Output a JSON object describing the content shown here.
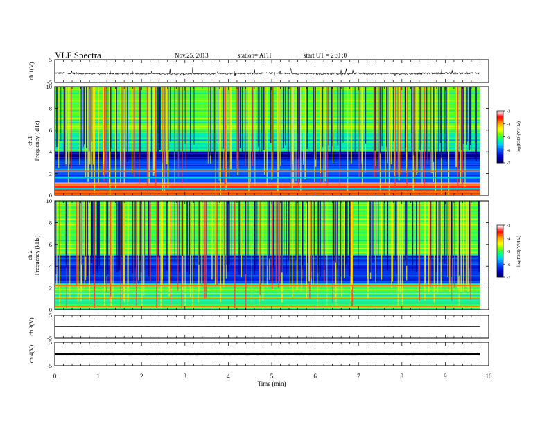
{
  "header": {
    "title": "VLF  Spectra",
    "date": "Nov.25, 2013",
    "station": "station= ATH",
    "start": "start  UT  =   2  :0  :0"
  },
  "colors": {
    "scale": [
      "#000066",
      "#0000ff",
      "#00c8ff",
      "#00ff80",
      "#ffff00",
      "#ff0000",
      "#ffffff"
    ]
  },
  "chart_data": [
    {
      "type": "line",
      "panel": "ch1-waveform",
      "ylabel": "ch.1(V)",
      "ylim": [
        -5,
        5
      ],
      "yticks": [
        "5",
        "-5"
      ],
      "x": [
        0,
        1,
        2,
        3,
        4,
        5,
        6,
        7,
        8,
        9,
        9.8
      ],
      "y": [
        -0.9,
        -1.2,
        -1.1,
        -1.3,
        -1.1,
        -1.0,
        -1.2,
        -1.1,
        -1.2,
        -1.0,
        -1.0
      ]
    },
    {
      "type": "heatmap",
      "panel": "ch1-spectrogram",
      "ylabel": "ch.1\nFrequency  (kHz)",
      "ylim": [
        0,
        10
      ],
      "yticks": [
        "0",
        "2",
        "4",
        "6",
        "8",
        "10"
      ],
      "colorbar": {
        "label": "log(PSD)(V²/Hz)",
        "range": [
          -7,
          -3
        ],
        "ticks": [
          "-7",
          "-6",
          "-5",
          "-4",
          "-3"
        ]
      },
      "bands_kHz": [
        {
          "from": 0,
          "to": 1.2,
          "level": -3.6
        },
        {
          "from": 1.2,
          "to": 3.2,
          "level": -6.0
        },
        {
          "from": 3.2,
          "to": 4.0,
          "level": -6.7
        },
        {
          "from": 4.0,
          "to": 6.0,
          "level": -5.3
        },
        {
          "from": 6.0,
          "to": 10,
          "level": -4.9
        }
      ]
    },
    {
      "type": "heatmap",
      "panel": "ch2-spectrogram",
      "ylabel": "ch.2\nFrequency  (kHz)",
      "ylim": [
        0,
        10
      ],
      "yticks": [
        "0",
        "2",
        "4",
        "6",
        "8",
        "10"
      ],
      "colorbar": {
        "label": "log(PSD)(V²/Hz)",
        "range": [
          -7,
          -3
        ],
        "ticks": [
          "-7",
          "-6",
          "-5",
          "-4",
          "-3"
        ]
      },
      "bands_kHz": [
        {
          "from": 0,
          "to": 2.4,
          "level": -5.0
        },
        {
          "from": 2.4,
          "to": 5.0,
          "level": -6.2
        },
        {
          "from": 5.0,
          "to": 10,
          "level": -5.0
        }
      ]
    },
    {
      "type": "line",
      "panel": "ch3-waveform",
      "ylabel": "ch.3(V)",
      "ylim": [
        -5,
        5
      ],
      "yticks": [
        "5",
        "-5"
      ],
      "x": [
        0,
        9.8
      ],
      "y": [
        0,
        0
      ]
    },
    {
      "type": "line",
      "panel": "ch4-waveform",
      "ylabel": "ch.4(V)",
      "ylim": [
        -5,
        5
      ],
      "yticks": [
        "5",
        "-5"
      ],
      "x": [
        0,
        9.8
      ],
      "y": [
        0,
        0
      ]
    }
  ],
  "xaxis": {
    "label": "Time  (min)",
    "range": [
      0,
      10
    ],
    "ticks": [
      "0",
      "1",
      "2",
      "3",
      "4",
      "5",
      "6",
      "7",
      "8",
      "9",
      "10"
    ]
  }
}
